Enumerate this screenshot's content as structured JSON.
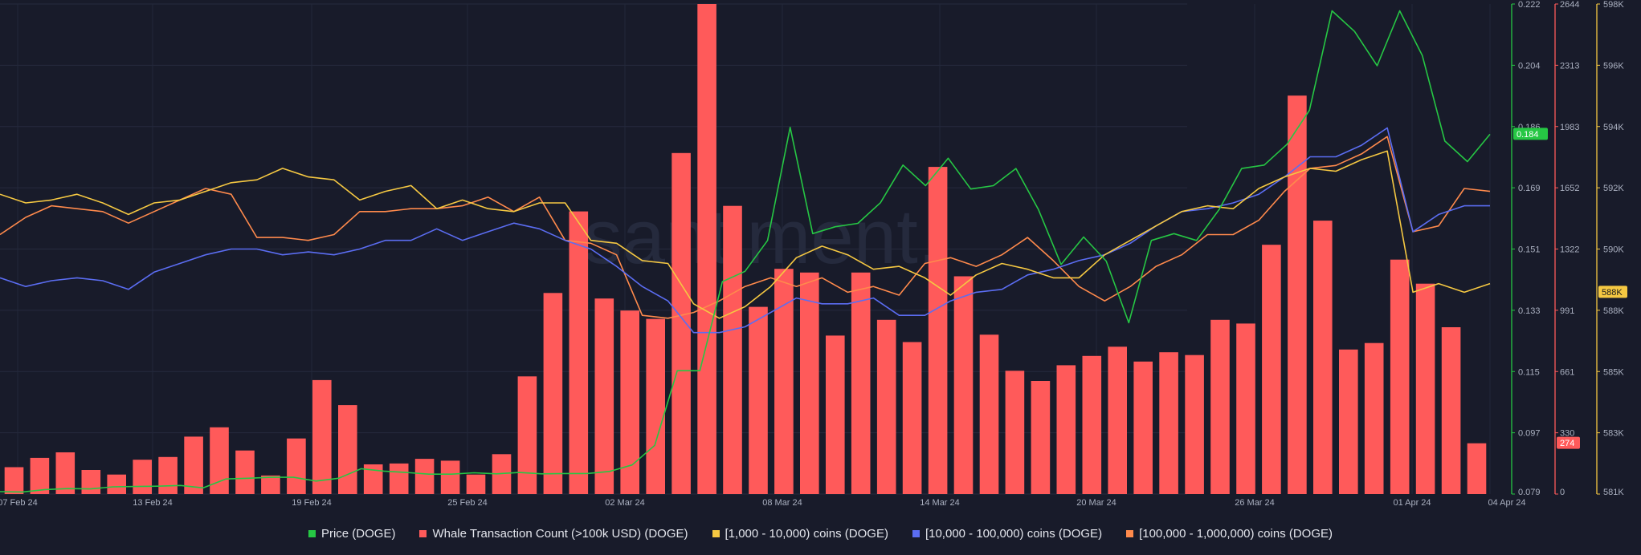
{
  "chart_data": {
    "type": "bar",
    "watermark": "santiment.",
    "x_ticks": [
      "07 Feb 24",
      "13 Feb 24",
      "19 Feb 24",
      "25 Feb 24",
      "02 Mar 24",
      "08 Mar 24",
      "14 Mar 24",
      "20 Mar 24",
      "26 Mar 24",
      "01 Apr 24",
      "04 Apr 24"
    ],
    "axes": {
      "price": {
        "ticks": [
          "0.222",
          "0.204",
          "0.186",
          "0.169",
          "0.151",
          "0.133",
          "0.115",
          "0.097",
          "0.079"
        ],
        "range": [
          0.079,
          0.222
        ],
        "color": "#26c744",
        "current_label": "0.184"
      },
      "whale": {
        "ticks": [
          "2644",
          "2313",
          "1983",
          "1652",
          "1322",
          "991",
          "661",
          "330",
          "0"
        ],
        "range": [
          0,
          2644
        ],
        "color": "#ff5a5a",
        "current_label": "274"
      },
      "holdings": {
        "ticks": [
          "598K",
          "596K",
          "594K",
          "592K",
          "590K",
          "588K",
          "585K",
          "583K",
          "581K"
        ],
        "range": [
          581,
          598
        ],
        "color": "#f5c842",
        "current_label": "588K"
      }
    },
    "series": [
      {
        "name": "Price (DOGE)",
        "color": "#26c744",
        "type": "line",
        "axis": "price",
        "values": [
          0.0797,
          0.0796,
          0.0803,
          0.0806,
          0.0805,
          0.0811,
          0.0812,
          0.0813,
          0.0815,
          0.0808,
          0.0834,
          0.0836,
          0.0839,
          0.0839,
          0.0828,
          0.0836,
          0.0864,
          0.0857,
          0.0853,
          0.0848,
          0.0848,
          0.0852,
          0.0849,
          0.0853,
          0.0849,
          0.085,
          0.085,
          0.0856,
          0.0875,
          0.0932,
          0.115,
          0.115,
          0.141,
          0.144,
          0.153,
          0.186,
          0.155,
          0.157,
          0.158,
          0.164,
          0.175,
          0.169,
          0.177,
          0.168,
          0.169,
          0.174,
          0.162,
          0.146,
          0.154,
          0.147,
          0.129,
          0.153,
          0.155,
          0.153,
          0.162,
          0.174,
          0.175,
          0.181,
          0.191,
          0.22,
          0.214,
          0.204,
          0.22,
          0.207,
          0.182,
          0.176,
          0.184
        ]
      },
      {
        "name": "Whale Transaction Count (>100k USD) (DOGE)",
        "color": "#ff5a5a",
        "type": "bar",
        "axis": "whale",
        "values": [
          145,
          195,
          225,
          130,
          105,
          185,
          200,
          310,
          360,
          235,
          100,
          300,
          615,
          480,
          160,
          165,
          190,
          180,
          105,
          215,
          635,
          1085,
          1525,
          1055,
          990,
          945,
          1840,
          2644,
          1555,
          1010,
          1215,
          1195,
          855,
          1195,
          940,
          820,
          1765,
          1175,
          860,
          665,
          610,
          695,
          745,
          795,
          715,
          765,
          750,
          940,
          920,
          1345,
          2150,
          1475,
          780,
          815,
          1265,
          1135,
          900,
          274
        ]
      },
      {
        "name": "[1,000 - 10,000) coins (DOGE)",
        "color": "#f5c842",
        "type": "line",
        "axis": "holdings",
        "values": [
          591.4,
          591.1,
          591.2,
          591.4,
          591.1,
          590.7,
          591.1,
          591.2,
          591.5,
          591.8,
          591.9,
          592.3,
          592.0,
          591.9,
          591.2,
          591.5,
          591.7,
          590.9,
          591.2,
          590.9,
          590.8,
          591.1,
          591.1,
          589.8,
          589.7,
          589.1,
          589.0,
          587.6,
          587.1,
          587.5,
          588.2,
          589.2,
          589.6,
          589.3,
          588.8,
          588.9,
          588.5,
          587.9,
          588.6,
          589.0,
          588.8,
          588.5,
          588.5,
          589.3,
          589.8,
          590.3,
          590.8,
          591.0,
          590.9,
          591.6,
          592.0,
          592.3,
          592.2,
          592.6,
          592.9,
          588.0,
          588.3,
          588.0,
          588.3
        ]
      },
      {
        "name": "[10,000 - 100,000) coins (DOGE)",
        "color": "#5b6df2",
        "type": "line",
        "axis": "holdings",
        "values": [
          588.5,
          588.2,
          588.4,
          588.5,
          588.4,
          588.1,
          588.7,
          589.0,
          589.3,
          589.5,
          589.5,
          589.3,
          589.4,
          589.3,
          589.5,
          589.8,
          589.8,
          590.2,
          589.8,
          590.1,
          590.4,
          590.2,
          589.8,
          589.5,
          588.9,
          588.2,
          587.7,
          586.6,
          586.6,
          586.8,
          587.3,
          587.8,
          587.6,
          587.6,
          587.8,
          587.2,
          587.2,
          587.7,
          588.0,
          588.1,
          588.6,
          588.8,
          589.1,
          589.3,
          589.7,
          590.3,
          590.8,
          590.9,
          591.1,
          591.4,
          592.0,
          592.7,
          592.7,
          593.1,
          593.7,
          590.1,
          590.7,
          591.0,
          591.0
        ]
      },
      {
        "name": "[100,000  - 1,000,000) coins (DOGE)",
        "color": "#ff8a4c",
        "type": "line",
        "axis": "holdings",
        "values": [
          590.0,
          590.6,
          591.0,
          590.9,
          590.8,
          590.4,
          590.8,
          591.2,
          591.6,
          591.4,
          589.9,
          589.9,
          589.8,
          590.0,
          590.8,
          590.8,
          590.9,
          590.9,
          591.0,
          591.3,
          590.8,
          591.3,
          589.8,
          589.7,
          589.3,
          587.2,
          587.1,
          587.3,
          587.7,
          588.2,
          588.5,
          588.2,
          588.5,
          588.0,
          588.2,
          587.9,
          589.0,
          589.2,
          588.9,
          589.3,
          589.9,
          589.1,
          588.2,
          587.7,
          588.2,
          588.9,
          589.3,
          590.0,
          590.0,
          590.5,
          591.5,
          592.3,
          592.4,
          592.8,
          593.4,
          590.1,
          590.3,
          591.6,
          591.5
        ]
      }
    ]
  }
}
